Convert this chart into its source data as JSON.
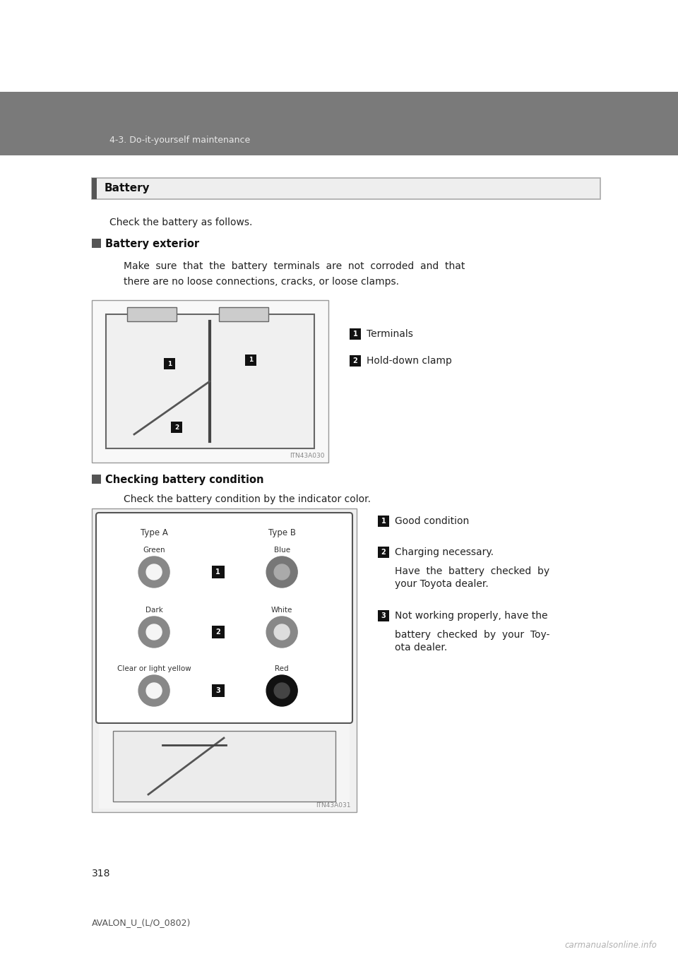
{
  "page_bg": "#ffffff",
  "header_bg": "#7a7a7a",
  "header_text": "4-3. Do-it-yourself maintenance",
  "header_text_color": "#e8e8e8",
  "battery_box_label": "Battery",
  "intro_text": "Check the battery as follows.",
  "section1_title": "Battery exterior",
  "section1_body_line1": "Make  sure  that  the  battery  terminals  are  not  corroded  and  that",
  "section1_body_line2": "there are no loose connections, cracks, or loose clamps.",
  "legend1": [
    "Terminals",
    "Hold-down clamp"
  ],
  "img1_id": "ITN43A030",
  "section2_title": "Checking battery condition",
  "section2_body": "Check the battery condition by the indicator color.",
  "legend2": [
    "Good condition",
    "Charging necessary.",
    "Have  the  battery  checked  by",
    "your Toyota dealer.",
    "Not working properly, have the",
    "battery  checked  by  your  Toy-",
    "ota dealer."
  ],
  "img2_id": "ITN43A031",
  "type_a_label": "Type A",
  "type_b_label": "Type B",
  "row_labels_a": [
    "Green",
    "Dark",
    "Clear or light yellow"
  ],
  "row_labels_b": [
    "Blue",
    "White",
    "Red"
  ],
  "page_number": "318",
  "footer_text": "AVALON_U_(L/O_0802)",
  "watermark": "carmanualsonline.info"
}
